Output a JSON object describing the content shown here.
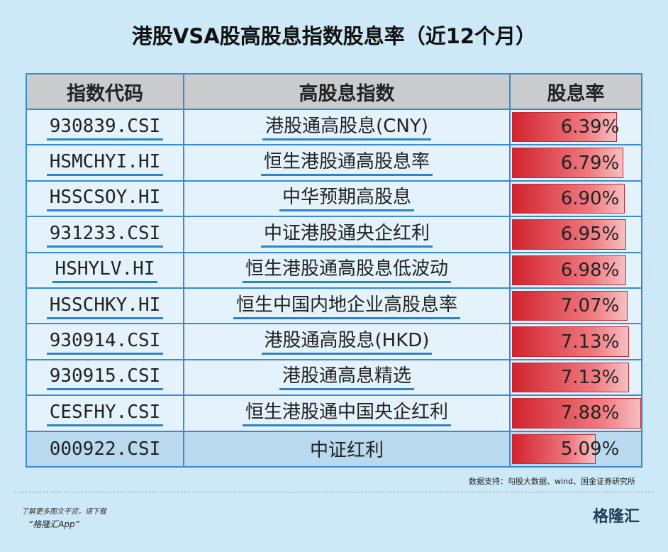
{
  "header": {
    "title": "港股VSA股高股息指数股息率（近12个月）"
  },
  "table": {
    "columns": [
      "指数代码",
      "高股息指数",
      "股息率"
    ],
    "rows": [
      {
        "code": "930839.CSI",
        "name": "港股通高股息(CNY)",
        "yield": {
          "value": 6.39,
          "label": "6.39%"
        }
      },
      {
        "code": "HSMCHYI.HI",
        "name": "恒生港股通高股息率",
        "yield": {
          "value": 6.79,
          "label": "6.79%"
        }
      },
      {
        "code": "HSSCSOY.HI",
        "name": "中华预期高股息",
        "yield": {
          "value": 6.9,
          "label": "6.90%"
        }
      },
      {
        "code": "931233.CSI",
        "name": "中证港股通央企红利",
        "yield": {
          "value": 6.95,
          "label": "6.95%"
        }
      },
      {
        "code": "HSHYLV.HI",
        "name": "恒生港股通高股息低波动",
        "yield": {
          "value": 6.98,
          "label": "6.98%"
        }
      },
      {
        "code": "HSSCHKY.HI",
        "name": "恒生中国内地企业高股息率",
        "yield": {
          "value": 7.07,
          "label": "7.07%"
        }
      },
      {
        "code": "930914.CSI",
        "name": "港股通高股息(HKD)",
        "yield": {
          "value": 7.13,
          "label": "7.13%"
        }
      },
      {
        "code": "930915.CSI",
        "name": "港股通高息精选",
        "yield": {
          "value": 7.13,
          "label": "7.13%"
        }
      },
      {
        "code": "CESFHY.CSI",
        "name": "恒生港股通中国央企红利",
        "yield": {
          "value": 7.88,
          "label": "7.88%"
        }
      },
      {
        "code": "000922.CSI",
        "name": "中证红利",
        "yield": {
          "value": 5.09,
          "label": "5.09%"
        }
      }
    ]
  },
  "footer": {
    "source": "数据支持：勾股大数据、wind、国金证券研究所",
    "promo": "了解更多图文干货，请下载",
    "app": "“格隆汇App”",
    "logo": "格隆汇"
  }
}
